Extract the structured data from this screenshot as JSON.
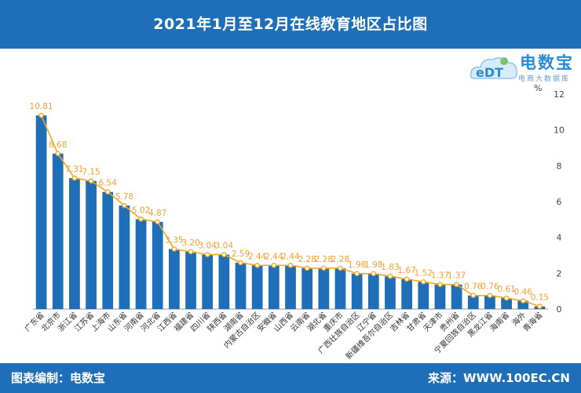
{
  "header": {
    "title": "2021年1月至12月在线教育地区占比图"
  },
  "logo": {
    "name": "电数宝",
    "subtitle": "电商大数据库",
    "mark": "eDT"
  },
  "footer": {
    "left": "图表编制：电数宝",
    "right": "来源：WWW.100EC.CN"
  },
  "chart_data": {
    "type": "bar",
    "unit": "%",
    "ylim": [
      0,
      12
    ],
    "yticks": [
      0,
      2,
      4,
      6,
      8,
      10,
      12
    ],
    "grid": false,
    "colors": {
      "bar": "#1f6fb8",
      "line": "#f5a623",
      "label": "#f0a030"
    },
    "categories": [
      "广东省",
      "北京市",
      "浙江省",
      "江苏省",
      "上海市",
      "山东省",
      "河南省",
      "河北省",
      "江西省",
      "福建省",
      "四川省",
      "陕西省",
      "湖南省",
      "内蒙古自治区",
      "安徽省",
      "山西省",
      "云南省",
      "湖北省",
      "重庆市",
      "广西壮族自治区",
      "辽宁省",
      "新疆维吾尔自治区",
      "吉林省",
      "甘肃省",
      "天津市",
      "贵州省",
      "宁夏回族自治区",
      "黑龙江省",
      "海南省",
      "海外",
      "青海省"
    ],
    "values": [
      10.81,
      8.68,
      7.31,
      7.15,
      6.54,
      5.78,
      5.02,
      4.87,
      3.35,
      3.2,
      3.04,
      3.04,
      2.59,
      2.44,
      2.44,
      2.44,
      2.28,
      2.28,
      2.28,
      1.98,
      1.98,
      1.83,
      1.67,
      1.52,
      1.37,
      1.37,
      0.76,
      0.76,
      0.61,
      0.46,
      0.15
    ],
    "value_labels": [
      "10.81",
      "8.68",
      "7.31",
      "7.15",
      "6.54",
      "5.78",
      "5.02",
      "4.87",
      "3.35",
      "3.20",
      "3.04",
      "3.04",
      "2.59",
      "2.44",
      "2.44",
      "2.44",
      "2.28",
      "2.28",
      "2.28",
      "1.98",
      "1.98",
      "1.83",
      "1.67",
      "1.52",
      "1.37",
      "1.37",
      "0.76",
      "0.76",
      "0.61",
      "0.46",
      "0.15"
    ]
  }
}
